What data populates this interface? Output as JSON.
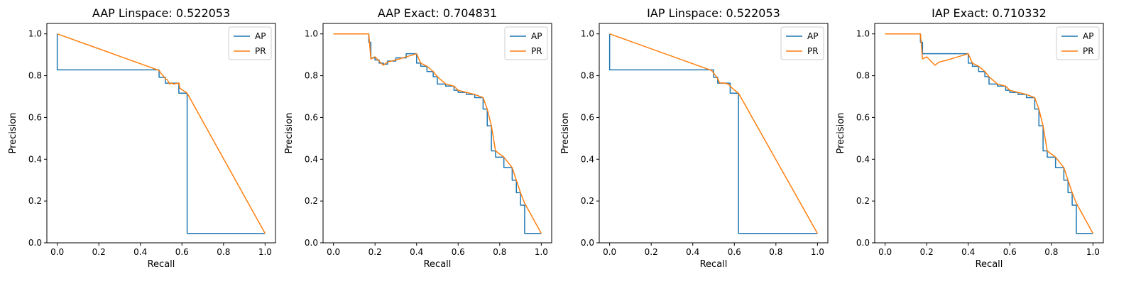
{
  "figure": {
    "background": "#ffffff",
    "colors": {
      "ap": "#1f77b4",
      "pr": "#ff7f0e"
    }
  },
  "chart_data": [
    {
      "type": "line",
      "title": "AAP Linspace: 0.522053",
      "xlabel": "Recall",
      "ylabel": "Precision",
      "xlim": [
        -0.05,
        1.05
      ],
      "ylim": [
        0.0,
        1.05
      ],
      "xticks": [
        0.0,
        0.2,
        0.4,
        0.6,
        0.8,
        1.0
      ],
      "yticks": [
        0.0,
        0.2,
        0.4,
        0.6,
        0.8,
        1.0
      ],
      "xtick_labels": [
        "0.0",
        "0.2",
        "0.4",
        "0.6",
        "0.8",
        "1.0"
      ],
      "ytick_labels": [
        "0.0",
        "0.2",
        "0.4",
        "0.6",
        "0.8",
        "1.0"
      ],
      "legend": "top-right",
      "grid": false,
      "series": [
        {
          "name": "AP",
          "x": [
            0.0,
            0.0,
            0.0,
            0.49,
            0.49,
            0.52,
            0.52,
            0.55,
            0.55,
            0.585,
            0.585,
            0.625,
            0.625,
            1.0
          ],
          "y": [
            1.0,
            1.0,
            0.828,
            0.828,
            0.792,
            0.792,
            0.764,
            0.764,
            0.764,
            0.764,
            0.716,
            0.716,
            0.045,
            0.045
          ]
        },
        {
          "name": "PR",
          "x": [
            0.0,
            0.49,
            0.5,
            0.51,
            0.52,
            0.53,
            0.54,
            0.55,
            0.56,
            0.585,
            0.59,
            0.625,
            1.0
          ],
          "y": [
            1.0,
            0.825,
            0.81,
            0.8,
            0.785,
            0.78,
            0.76,
            0.765,
            0.76,
            0.765,
            0.74,
            0.716,
            0.045
          ]
        }
      ]
    },
    {
      "type": "line",
      "title": "AAP Exact: 0.704831",
      "xlabel": "Recall",
      "ylabel": "Precision",
      "xlim": [
        -0.05,
        1.05
      ],
      "ylim": [
        0.0,
        1.05
      ],
      "xticks": [
        0.0,
        0.2,
        0.4,
        0.6,
        0.8,
        1.0
      ],
      "yticks": [
        0.0,
        0.2,
        0.4,
        0.6,
        0.8,
        1.0
      ],
      "xtick_labels": [
        "0.0",
        "0.2",
        "0.4",
        "0.6",
        "0.8",
        "1.0"
      ],
      "ytick_labels": [
        "0.0",
        "0.2",
        "0.4",
        "0.6",
        "0.8",
        "1.0"
      ],
      "legend": "top-right",
      "grid": false,
      "series": [
        {
          "name": "AP",
          "x": [
            0.0,
            0.17,
            0.17,
            0.18,
            0.18,
            0.2,
            0.2,
            0.22,
            0.22,
            0.24,
            0.24,
            0.26,
            0.26,
            0.3,
            0.3,
            0.35,
            0.35,
            0.4,
            0.4,
            0.42,
            0.42,
            0.45,
            0.45,
            0.48,
            0.48,
            0.5,
            0.5,
            0.54,
            0.54,
            0.58,
            0.58,
            0.6,
            0.6,
            0.64,
            0.64,
            0.68,
            0.68,
            0.72,
            0.72,
            0.74,
            0.74,
            0.76,
            0.76,
            0.78,
            0.78,
            0.82,
            0.82,
            0.86,
            0.86,
            0.88,
            0.88,
            0.9,
            0.9,
            0.92,
            0.92,
            1.0
          ],
          "y": [
            1.0,
            1.0,
            0.96,
            0.96,
            0.885,
            0.885,
            0.875,
            0.875,
            0.86,
            0.86,
            0.855,
            0.855,
            0.87,
            0.87,
            0.885,
            0.885,
            0.905,
            0.905,
            0.86,
            0.86,
            0.845,
            0.845,
            0.82,
            0.82,
            0.795,
            0.795,
            0.76,
            0.76,
            0.75,
            0.75,
            0.73,
            0.73,
            0.72,
            0.72,
            0.71,
            0.71,
            0.695,
            0.695,
            0.64,
            0.64,
            0.56,
            0.56,
            0.44,
            0.44,
            0.41,
            0.41,
            0.36,
            0.36,
            0.3,
            0.3,
            0.24,
            0.24,
            0.18,
            0.18,
            0.045,
            0.045
          ]
        },
        {
          "name": "PR",
          "x": [
            0.0,
            0.17,
            0.18,
            0.2,
            0.22,
            0.24,
            0.26,
            0.3,
            0.35,
            0.4,
            0.42,
            0.45,
            0.48,
            0.5,
            0.54,
            0.58,
            0.6,
            0.64,
            0.68,
            0.72,
            0.74,
            0.76,
            0.78,
            0.82,
            0.86,
            0.88,
            0.9,
            0.92,
            1.0
          ],
          "y": [
            1.0,
            1.0,
            0.88,
            0.89,
            0.87,
            0.85,
            0.865,
            0.875,
            0.89,
            0.905,
            0.86,
            0.845,
            0.82,
            0.795,
            0.76,
            0.75,
            0.73,
            0.72,
            0.71,
            0.695,
            0.64,
            0.56,
            0.44,
            0.41,
            0.36,
            0.3,
            0.24,
            0.19,
            0.045
          ]
        }
      ]
    },
    {
      "type": "line",
      "title": "IAP Linspace: 0.522053",
      "xlabel": "Recall",
      "ylabel": "Precision",
      "xlim": [
        -0.05,
        1.05
      ],
      "ylim": [
        0.0,
        1.05
      ],
      "xticks": [
        0.0,
        0.2,
        0.4,
        0.6,
        0.8,
        1.0
      ],
      "yticks": [
        0.0,
        0.2,
        0.4,
        0.6,
        0.8,
        1.0
      ],
      "xtick_labels": [
        "0.0",
        "0.2",
        "0.4",
        "0.6",
        "0.8",
        "1.0"
      ],
      "ytick_labels": [
        "0.0",
        "0.2",
        "0.4",
        "0.6",
        "0.8",
        "1.0"
      ],
      "legend": "top-right",
      "grid": false,
      "series": [
        {
          "name": "AP",
          "x": [
            0.0,
            0.0,
            0.0,
            0.5,
            0.5,
            0.52,
            0.52,
            0.58,
            0.58,
            0.62,
            0.62,
            1.0
          ],
          "y": [
            1.0,
            1.0,
            0.828,
            0.828,
            0.792,
            0.792,
            0.764,
            0.764,
            0.716,
            0.716,
            0.045,
            0.045
          ]
        },
        {
          "name": "PR",
          "x": [
            0.0,
            0.49,
            0.51,
            0.52,
            0.53,
            0.55,
            0.57,
            0.59,
            0.62,
            1.0
          ],
          "y": [
            1.0,
            0.825,
            0.8,
            0.785,
            0.765,
            0.765,
            0.76,
            0.74,
            0.716,
            0.045
          ]
        }
      ]
    },
    {
      "type": "line",
      "title": "IAP Exact: 0.710332",
      "xlabel": "Recall",
      "ylabel": "Precision",
      "xlim": [
        -0.05,
        1.05
      ],
      "ylim": [
        0.0,
        1.05
      ],
      "xticks": [
        0.0,
        0.2,
        0.4,
        0.6,
        0.8,
        1.0
      ],
      "yticks": [
        0.0,
        0.2,
        0.4,
        0.6,
        0.8,
        1.0
      ],
      "xtick_labels": [
        "0.0",
        "0.2",
        "0.4",
        "0.6",
        "0.8",
        "1.0"
      ],
      "ytick_labels": [
        "0.0",
        "0.2",
        "0.4",
        "0.6",
        "0.8",
        "1.0"
      ],
      "legend": "top-right",
      "grid": false,
      "series": [
        {
          "name": "AP",
          "x": [
            0.0,
            0.17,
            0.17,
            0.18,
            0.18,
            0.4,
            0.4,
            0.42,
            0.42,
            0.45,
            0.45,
            0.48,
            0.48,
            0.5,
            0.5,
            0.54,
            0.54,
            0.58,
            0.58,
            0.6,
            0.6,
            0.64,
            0.64,
            0.68,
            0.68,
            0.72,
            0.72,
            0.74,
            0.74,
            0.76,
            0.76,
            0.78,
            0.78,
            0.82,
            0.82,
            0.86,
            0.86,
            0.88,
            0.88,
            0.9,
            0.9,
            0.92,
            0.92,
            1.0
          ],
          "y": [
            1.0,
            1.0,
            0.96,
            0.96,
            0.905,
            0.905,
            0.86,
            0.86,
            0.845,
            0.845,
            0.82,
            0.82,
            0.795,
            0.795,
            0.76,
            0.76,
            0.75,
            0.75,
            0.73,
            0.73,
            0.72,
            0.72,
            0.71,
            0.71,
            0.695,
            0.695,
            0.64,
            0.64,
            0.56,
            0.56,
            0.44,
            0.44,
            0.41,
            0.41,
            0.36,
            0.36,
            0.3,
            0.3,
            0.24,
            0.24,
            0.18,
            0.18,
            0.045,
            0.045
          ]
        },
        {
          "name": "PR",
          "x": [
            0.0,
            0.17,
            0.18,
            0.2,
            0.22,
            0.24,
            0.26,
            0.3,
            0.35,
            0.4,
            0.42,
            0.45,
            0.48,
            0.5,
            0.54,
            0.58,
            0.6,
            0.64,
            0.68,
            0.72,
            0.74,
            0.76,
            0.78,
            0.82,
            0.86,
            0.88,
            0.9,
            0.92,
            1.0
          ],
          "y": [
            1.0,
            1.0,
            0.88,
            0.89,
            0.87,
            0.85,
            0.865,
            0.875,
            0.89,
            0.905,
            0.86,
            0.845,
            0.82,
            0.795,
            0.76,
            0.75,
            0.73,
            0.72,
            0.71,
            0.695,
            0.64,
            0.56,
            0.44,
            0.41,
            0.36,
            0.3,
            0.24,
            0.19,
            0.045
          ]
        }
      ]
    }
  ]
}
